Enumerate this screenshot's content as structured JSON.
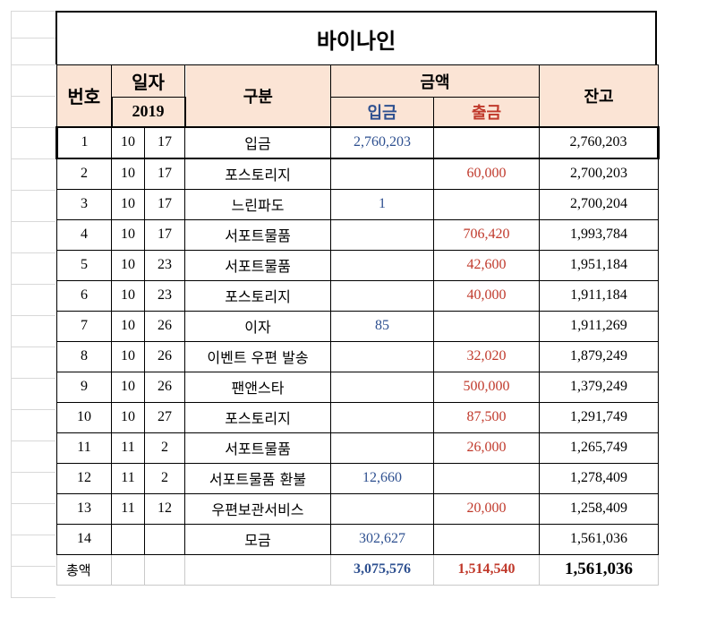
{
  "title": "바이나인",
  "headers": {
    "no": "번호",
    "date": "일자",
    "year": "2019",
    "category": "구분",
    "amount": "금액",
    "deposit": "입금",
    "withdrawal": "출금",
    "balance": "잔고"
  },
  "rows": [
    {
      "no": "1",
      "month": "10",
      "day": "17",
      "category": "입금",
      "deposit": "2,760,203",
      "withdrawal": "",
      "balance": "2,760,203"
    },
    {
      "no": "2",
      "month": "10",
      "day": "17",
      "category": "포스토리지",
      "deposit": "",
      "withdrawal": "60,000",
      "balance": "2,700,203"
    },
    {
      "no": "3",
      "month": "10",
      "day": "17",
      "category": "느린파도",
      "deposit": "1",
      "withdrawal": "",
      "balance": "2,700,204"
    },
    {
      "no": "4",
      "month": "10",
      "day": "17",
      "category": "서포트물품",
      "deposit": "",
      "withdrawal": "706,420",
      "balance": "1,993,784"
    },
    {
      "no": "5",
      "month": "10",
      "day": "23",
      "category": "서포트물품",
      "deposit": "",
      "withdrawal": "42,600",
      "balance": "1,951,184"
    },
    {
      "no": "6",
      "month": "10",
      "day": "23",
      "category": "포스토리지",
      "deposit": "",
      "withdrawal": "40,000",
      "balance": "1,911,184"
    },
    {
      "no": "7",
      "month": "10",
      "day": "26",
      "category": "이자",
      "deposit": "85",
      "withdrawal": "",
      "balance": "1,911,269"
    },
    {
      "no": "8",
      "month": "10",
      "day": "26",
      "category": "이벤트 우편 발송",
      "deposit": "",
      "withdrawal": "32,020",
      "balance": "1,879,249"
    },
    {
      "no": "9",
      "month": "10",
      "day": "26",
      "category": "팬앤스타",
      "deposit": "",
      "withdrawal": "500,000",
      "balance": "1,379,249"
    },
    {
      "no": "10",
      "month": "10",
      "day": "27",
      "category": "포스토리지",
      "deposit": "",
      "withdrawal": "87,500",
      "balance": "1,291,749"
    },
    {
      "no": "11",
      "month": "11",
      "day": "2",
      "category": "서포트물품",
      "deposit": "",
      "withdrawal": "26,000",
      "balance": "1,265,749"
    },
    {
      "no": "12",
      "month": "11",
      "day": "2",
      "category": "서포트물품 환불",
      "deposit": "12,660",
      "withdrawal": "",
      "balance": "1,278,409"
    },
    {
      "no": "13",
      "month": "11",
      "day": "12",
      "category": "우편보관서비스",
      "deposit": "",
      "withdrawal": "20,000",
      "balance": "1,258,409"
    },
    {
      "no": "14",
      "month": "",
      "day": "",
      "category": "모금",
      "deposit": "302,627",
      "withdrawal": "",
      "balance": "1,561,036"
    }
  ],
  "total": {
    "label": "총액",
    "deposit": "3,075,576",
    "withdrawal": "1,514,540",
    "balance": "1,561,036"
  },
  "colors": {
    "header_bg": "#fbe4d5",
    "deposit": "#2e5090",
    "withdrawal": "#c0392b"
  }
}
